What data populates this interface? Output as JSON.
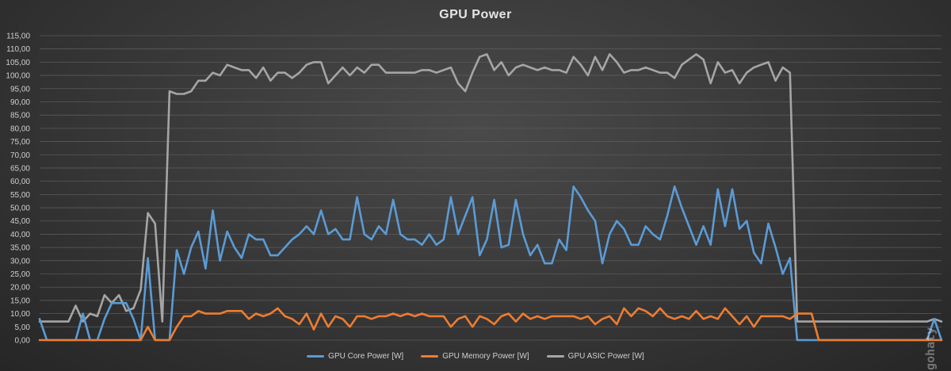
{
  "chart_data": {
    "type": "line",
    "title": "GPU Power",
    "ylim": [
      0,
      115
    ],
    "ytick_step": 5,
    "ytick_labels": [
      "0,00",
      "5,00",
      "10,00",
      "15,00",
      "20,00",
      "25,00",
      "30,00",
      "35,00",
      "40,00",
      "45,00",
      "50,00",
      "55,00",
      "60,00",
      "65,00",
      "70,00",
      "75,00",
      "80,00",
      "85,00",
      "90,00",
      "95,00",
      "100,00",
      "105,00",
      "110,00",
      "115,00"
    ],
    "grid": true,
    "legend_position": "bottom",
    "series": [
      {
        "name": "GPU Core Power [W]",
        "color": "#5b9bd5",
        "values": [
          8,
          0,
          0,
          0,
          0,
          0,
          10,
          0,
          0,
          8,
          14,
          14,
          14,
          8,
          0,
          31,
          0,
          0,
          0,
          34,
          25,
          35,
          41,
          27,
          49,
          30,
          41,
          35,
          31,
          40,
          38,
          38,
          32,
          32,
          35,
          38,
          40,
          43,
          40,
          49,
          40,
          42,
          38,
          38,
          54,
          40,
          38,
          43,
          40,
          53,
          40,
          38,
          38,
          36,
          40,
          36,
          38,
          54,
          40,
          47,
          54,
          32,
          38,
          53,
          35,
          36,
          53,
          40,
          32,
          36,
          29,
          29,
          38,
          34,
          58,
          54,
          49,
          45,
          29,
          40,
          45,
          42,
          36,
          36,
          43,
          40,
          38,
          47,
          58,
          50,
          43,
          36,
          43,
          36,
          57,
          43,
          57,
          42,
          45,
          33,
          29,
          44,
          35,
          25,
          31,
          0,
          0,
          0,
          0,
          0,
          0,
          0,
          0,
          0,
          0,
          0,
          0,
          0,
          0,
          0,
          0,
          0,
          0,
          0,
          8,
          0
        ],
        "values_note": ""
      },
      {
        "name": "GPU Memory Power [W]",
        "color": "#ed7d31",
        "values": [
          0,
          0,
          0,
          0,
          0,
          0,
          0,
          0,
          0,
          0,
          0,
          0,
          0,
          0,
          0,
          5,
          0,
          0,
          0,
          5,
          9,
          9,
          11,
          10,
          10,
          10,
          11,
          11,
          11,
          8,
          10,
          9,
          10,
          12,
          9,
          8,
          6,
          10,
          4,
          10,
          5,
          9,
          8,
          5,
          9,
          9,
          8,
          9,
          9,
          10,
          9,
          10,
          9,
          10,
          9,
          9,
          9,
          5,
          8,
          9,
          5,
          9,
          8,
          6,
          9,
          10,
          7,
          10,
          8,
          9,
          8,
          9,
          9,
          9,
          9,
          8,
          9,
          6,
          8,
          9,
          6,
          12,
          9,
          12,
          11,
          9,
          12,
          9,
          8,
          9,
          8,
          11,
          8,
          9,
          8,
          12,
          9,
          6,
          9,
          5,
          9,
          9,
          9,
          9,
          8,
          10,
          10,
          10,
          0,
          0,
          0,
          0,
          0,
          0,
          0,
          0,
          0,
          0,
          0,
          0,
          0,
          0,
          0,
          0,
          0,
          0
        ],
        "values_note": ""
      },
      {
        "name": "GPU ASIC Power [W]",
        "color": "#a5a5a5",
        "values": [
          7,
          7,
          7,
          7,
          7,
          13,
          7,
          10,
          9,
          17,
          14,
          17,
          11,
          12,
          19,
          48,
          44,
          7,
          94,
          93,
          93,
          94,
          98,
          98,
          101,
          100,
          104,
          103,
          102,
          102,
          99,
          103,
          98,
          101,
          101,
          99,
          101,
          104,
          105,
          105,
          97,
          100,
          103,
          100,
          103,
          101,
          104,
          104,
          101,
          101,
          101,
          101,
          101,
          102,
          102,
          101,
          102,
          103,
          97,
          94,
          101,
          107,
          108,
          102,
          105,
          100,
          103,
          104,
          103,
          102,
          103,
          102,
          102,
          101,
          107,
          104,
          100,
          107,
          102,
          108,
          105,
          101,
          102,
          102,
          103,
          102,
          101,
          101,
          99,
          104,
          106,
          108,
          106,
          97,
          105,
          101,
          102,
          97,
          101,
          103,
          104,
          105,
          98,
          103,
          101,
          7,
          7,
          7,
          7,
          7,
          7,
          7,
          7,
          7,
          7,
          7,
          7,
          7,
          7,
          7,
          7,
          7,
          7,
          7,
          8,
          7
        ],
        "values_note": ""
      }
    ]
  },
  "watermark": "gohaty"
}
